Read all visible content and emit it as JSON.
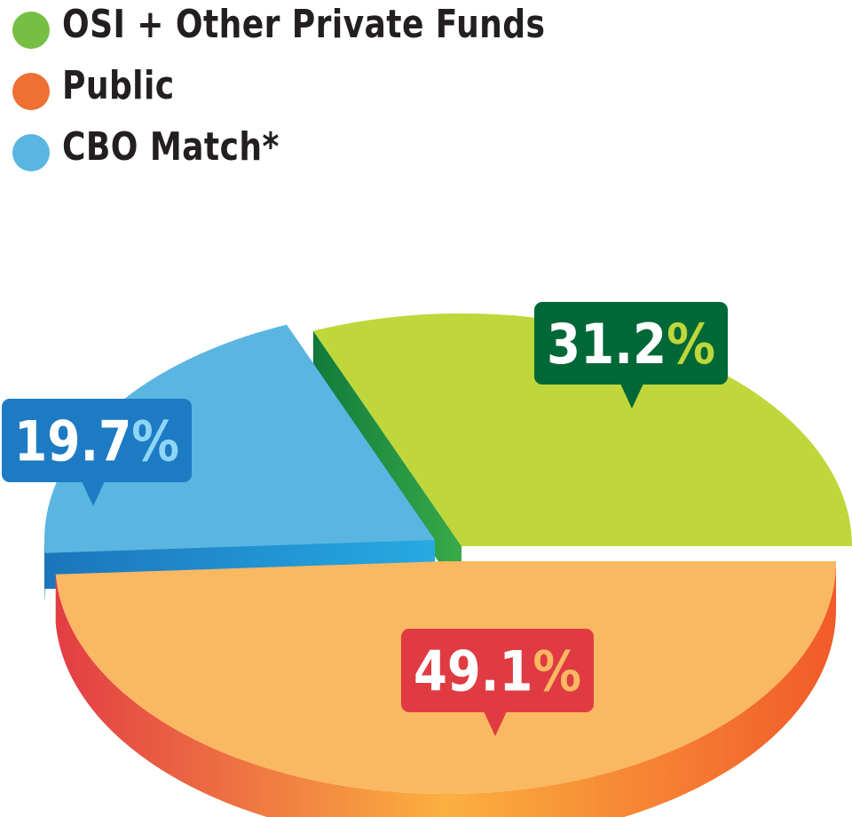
{
  "chart_data": {
    "type": "pie",
    "title": "",
    "series": [
      {
        "name": "",
        "values": [
          31.2,
          49.1,
          19.7
        ],
        "labels": [
          "31.2%",
          "49.1%",
          "19.7%"
        ]
      }
    ],
    "categories": [
      "OSI + Other Private Funds",
      "Public",
      "CBO Match*"
    ],
    "colors": {
      "OSI + Other Private Funds": {
        "top": "#bfd73b",
        "side": "#27a64a",
        "badge": "#006837",
        "percent_sign": "#bfd73b"
      },
      "Public": {
        "top": "#fbb862",
        "side": "#f47b3a",
        "badge": "#e03b43",
        "percent_sign": "#fbb862"
      },
      "CBO Match*": {
        "top": "#5ab6e0",
        "side": "#1a8cd8",
        "badge": "#1d7bc4",
        "percent_sign": "#8fd6f6"
      }
    },
    "legend": {
      "placement": "top-left"
    },
    "style": "3d-exploded"
  },
  "legend": {
    "items": [
      {
        "label": "OSI + Other Private Funds",
        "color": "#77bf44"
      },
      {
        "label": "Public",
        "color": "#ee7032"
      },
      {
        "label": "CBO Match*",
        "color": "#5ab6e0"
      }
    ]
  }
}
